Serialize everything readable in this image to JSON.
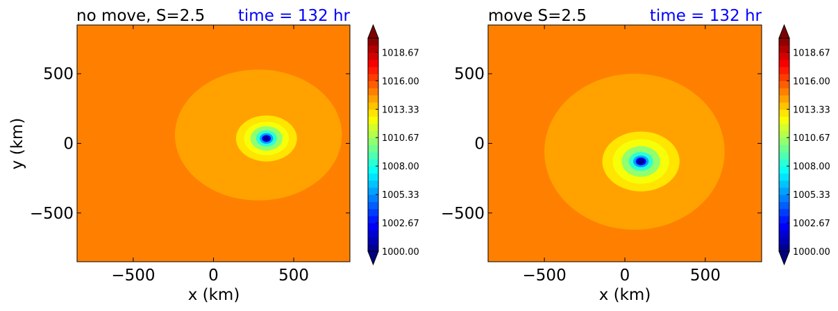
{
  "chart_data": [
    {
      "type": "heatmap",
      "title_left": "no move, S=2.5",
      "title_right": "time = 132 hr",
      "title_right_color": "#0000ff",
      "xlabel": "x (km)",
      "ylabel": "y (km)",
      "xlim": [
        -850,
        850
      ],
      "ylim": [
        -850,
        850
      ],
      "xticks": [
        -500,
        0,
        500
      ],
      "yticks": [
        -500,
        0,
        500
      ],
      "xtick_labels": [
        "−500",
        "0",
        "500"
      ],
      "ytick_labels": [
        "−500",
        "0",
        "500"
      ],
      "background_value": 1015.0,
      "field": {
        "center": [
          330,
          35
        ],
        "rings": [
          {
            "rx": 190,
            "ry": 165,
            "value": 1013.0
          },
          {
            "rx": 140,
            "ry": 120,
            "value": 1012.0
          },
          {
            "rx": 100,
            "ry": 88,
            "value": 1010.5
          },
          {
            "rx": 65,
            "ry": 58,
            "value": 1008.5
          },
          {
            "rx": 42,
            "ry": 38,
            "value": 1005.5
          },
          {
            "rx": 28,
            "ry": 25,
            "value": 1002.5
          },
          {
            "rx": 18,
            "ry": 16,
            "value": 1000.5
          }
        ],
        "band_value": 1014.2,
        "band": {
          "center": [
            280,
            60
          ],
          "rx": 520,
          "ry": 470
        }
      },
      "colorbar": {
        "min": 1000.0,
        "max": 1020.0,
        "extend": "both",
        "tick_values": [
          1000.0,
          1002.67,
          1005.33,
          1008.0,
          1010.67,
          1013.33,
          1016.0,
          1018.67
        ],
        "tick_labels": [
          "1000.00",
          "1002.67",
          "1005.33",
          "1008.00",
          "1010.67",
          "1013.33",
          "1016.00",
          "1018.67"
        ]
      }
    },
    {
      "type": "heatmap",
      "title_left": "move S=2.5",
      "title_right": "time = 132 hr",
      "title_right_color": "#0000ff",
      "xlabel": "x (km)",
      "ylabel": "",
      "xlim": [
        -850,
        850
      ],
      "ylim": [
        -850,
        850
      ],
      "xticks": [
        -500,
        0,
        500
      ],
      "yticks": [
        -500,
        0,
        500
      ],
      "xtick_labels": [
        "−500",
        "0",
        "500"
      ],
      "ytick_labels": [
        "−500",
        "0",
        "500"
      ],
      "background_value": 1015.0,
      "field": {
        "center": [
          100,
          -130
        ],
        "rings": [
          {
            "rx": 240,
            "ry": 215,
            "value": 1013.0
          },
          {
            "rx": 175,
            "ry": 160,
            "value": 1012.0
          },
          {
            "rx": 120,
            "ry": 110,
            "value": 1010.5
          },
          {
            "rx": 75,
            "ry": 68,
            "value": 1008.5
          },
          {
            "rx": 48,
            "ry": 42,
            "value": 1005.5
          },
          {
            "rx": 32,
            "ry": 28,
            "value": 1002.5
          },
          {
            "rx": 22,
            "ry": 19,
            "value": 1000.5
          }
        ],
        "band_value": 1014.2,
        "band": {
          "center": [
            60,
            -60
          ],
          "rx": 560,
          "ry": 560
        }
      },
      "colorbar": {
        "min": 1000.0,
        "max": 1020.0,
        "extend": "both",
        "tick_values": [
          1000.0,
          1002.67,
          1005.33,
          1008.0,
          1010.67,
          1013.33,
          1016.0,
          1018.67
        ],
        "tick_labels": [
          "1000.00",
          "1002.67",
          "1005.33",
          "1008.00",
          "1010.67",
          "1013.33",
          "1016.00",
          "1018.67"
        ]
      }
    }
  ]
}
